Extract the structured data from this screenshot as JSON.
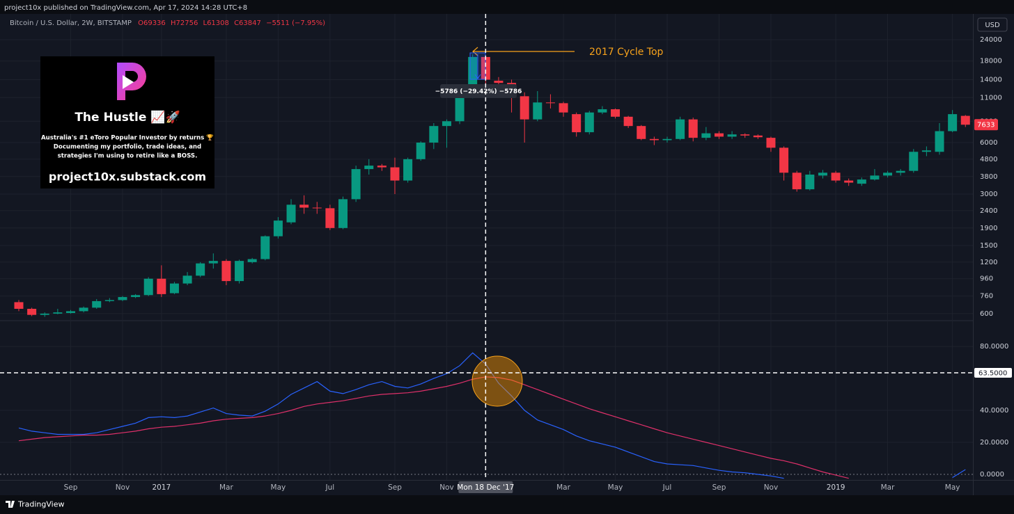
{
  "header": {
    "publisher": "project10x published on TradingView.com, Apr 17, 2024 14:28 UTC+8",
    "currency": "USD",
    "footer": "TradingView"
  },
  "legend": {
    "symbol": "Bitcoin / U.S. Dollar, 2W, BITSTAMP",
    "open": "O69336",
    "high": "H72756",
    "low": "L61308",
    "close": "C63847",
    "change": "−5511 (−7.95%)"
  },
  "promo": {
    "title": "The Hustle 📈🚀",
    "lines": [
      "Australia's #1 eToro Popular Investor by returns 🏆",
      "Documenting my portfolio, trade ideas, and",
      "strategies I'm using to retire like a BOSS."
    ],
    "url": "project10x.substack.com"
  },
  "chart_data": [
    {
      "type": "candlestick",
      "log_scale": true,
      "grid": true,
      "annotation": "2017 Cycle Top",
      "measure_label": "−5786 (−29.42%) −5786",
      "up_color": "#089981",
      "down_color": "#f23645",
      "ylim": [
        551,
        33300
      ],
      "yticks": [
        600,
        760,
        960,
        1200,
        1500,
        1900,
        2400,
        3000,
        3800,
        4800,
        6000,
        8000,
        11000,
        14000,
        18000,
        24000
      ],
      "open": [
        700,
        640,
        590,
        600,
        605,
        620,
        650,
        710,
        720,
        750,
        770,
        960,
        790,
        900,
        1000,
        1180,
        1220,
        930,
        1200,
        1250,
        1700,
        2050,
        2600,
        2500,
        2480,
        1900,
        2800,
        4200,
        4400,
        4300,
        3600,
        4800,
        6000,
        7500,
        8000,
        11000,
        19000,
        13800,
        13400,
        11200,
        8200,
        10300,
        10200,
        8800,
        6900,
        9000,
        9400,
        8500,
        7500,
        6300,
        6200,
        6300,
        8200,
        6400,
        6800,
        6500,
        6700,
        6600,
        6400,
        5600,
        4000,
        3200,
        3850,
        4000,
        3600,
        3450,
        3650,
        3850,
        4000,
        4100,
        5300,
        5300,
        7000,
        8600
      ],
      "high": [
        720,
        650,
        610,
        640,
        630,
        660,
        730,
        740,
        760,
        780,
        980,
        1150,
        920,
        1050,
        1200,
        1350,
        1250,
        1240,
        1270,
        1720,
        2200,
        2800,
        2950,
        2700,
        2600,
        2900,
        4400,
        4800,
        4500,
        4900,
        4900,
        6100,
        7800,
        8200,
        11300,
        19700,
        19500,
        14500,
        14000,
        11800,
        12000,
        11500,
        10400,
        9000,
        9200,
        9800,
        9500,
        8600,
        7600,
        6500,
        6500,
        8500,
        8400,
        7400,
        7000,
        7000,
        6800,
        6700,
        6500,
        5700,
        4100,
        4100,
        4150,
        4100,
        3700,
        3750,
        4200,
        4100,
        4200,
        5500,
        5700,
        7800,
        9300,
        8700
      ],
      "low": [
        620,
        580,
        575,
        595,
        600,
        610,
        640,
        700,
        710,
        740,
        760,
        750,
        780,
        880,
        980,
        1100,
        880,
        900,
        1180,
        1230,
        1650,
        2000,
        2300,
        2300,
        1850,
        1870,
        2700,
        3900,
        4100,
        3000,
        3500,
        4700,
        5500,
        5600,
        7700,
        10900,
        13200,
        13000,
        9000,
        6000,
        8000,
        9500,
        8500,
        6500,
        6700,
        8800,
        8300,
        7300,
        6200,
        5800,
        6000,
        6200,
        6100,
        6200,
        6300,
        6300,
        6400,
        6300,
        5300,
        3600,
        3100,
        3150,
        3700,
        3500,
        3350,
        3350,
        3600,
        3750,
        3850,
        4000,
        5000,
        5100,
        6900,
        7400
      ],
      "close": [
        640,
        590,
        600,
        610,
        620,
        650,
        710,
        720,
        750,
        770,
        960,
        780,
        900,
        1000,
        1180,
        1220,
        930,
        1220,
        1250,
        1700,
        2100,
        2600,
        2500,
        2480,
        1900,
        2800,
        4200,
        4400,
        4300,
        3600,
        4800,
        6000,
        7500,
        8000,
        11000,
        19000,
        14000,
        13400,
        11200,
        8200,
        10300,
        10200,
        9000,
        6900,
        9000,
        9400,
        8500,
        7500,
        6300,
        6200,
        6300,
        8200,
        6400,
        6800,
        6500,
        6700,
        6600,
        6450,
        5600,
        4000,
        3200,
        3900,
        4000,
        3600,
        3500,
        3650,
        3850,
        4000,
        4100,
        5300,
        5400,
        7000,
        8800,
        7633
      ]
    },
    {
      "type": "line",
      "grid": true,
      "categories": [
        null,
        null,
        null,
        null,
        "Sep",
        null,
        null,
        null,
        "Nov",
        null,
        null,
        "2017",
        null,
        null,
        null,
        null,
        "Mar",
        null,
        null,
        null,
        "May",
        null,
        null,
        null,
        "Jul",
        null,
        null,
        null,
        null,
        "Sep",
        null,
        null,
        null,
        "Nov",
        null,
        null,
        "Mon 18 Dec '17",
        null,
        null,
        null,
        null,
        null,
        "Mar",
        null,
        null,
        null,
        "May",
        null,
        null,
        null,
        "Jul",
        null,
        null,
        null,
        "Sep",
        null,
        null,
        null,
        "Nov",
        null,
        null,
        null,
        null,
        "2019",
        null,
        null,
        null,
        "Mar",
        null,
        null,
        null,
        null,
        "May",
        null
      ],
      "crosshair_x": "Mon 18 Dec '17",
      "crosshair_y": {
        "value": 63.5,
        "label": "63.5000"
      },
      "ylim": [
        -3.5,
        95.7
      ],
      "yticks": [
        {
          "value": 0,
          "label": "0.0000"
        },
        {
          "value": 20,
          "label": "20.0000"
        },
        {
          "value": 40,
          "label": "40.0000"
        },
        {
          "value": 80,
          "label": "80.0000"
        }
      ],
      "series": [
        {
          "color": "#2962ff",
          "values": [
            29,
            27,
            26,
            25,
            25,
            25,
            26,
            28,
            30,
            32,
            35.5,
            36,
            35.5,
            36.5,
            39,
            41.5,
            38,
            37,
            36.5,
            39.5,
            44,
            50,
            54,
            58,
            52,
            50.5,
            53,
            56,
            58,
            55,
            54,
            56.5,
            60,
            63,
            68,
            76,
            69,
            57,
            49,
            40,
            34,
            31,
            28,
            24,
            21,
            19,
            17,
            14,
            11,
            8,
            6.5,
            6,
            5.5,
            4,
            2.5,
            1.5,
            1,
            0,
            -1,
            -2.5,
            null,
            null,
            null,
            null,
            null,
            null,
            null,
            null,
            null,
            null,
            null,
            null,
            -2,
            3
          ]
        },
        {
          "color": "#e0306a",
          "values": [
            21,
            22,
            23,
            23.5,
            24,
            24.5,
            24.5,
            25,
            26,
            27,
            28.5,
            29.5,
            30,
            31,
            32,
            33.5,
            34.5,
            35,
            35.5,
            36.5,
            38,
            40,
            42.5,
            44,
            45,
            46,
            47.5,
            49,
            50,
            50.5,
            51,
            52,
            53.5,
            55,
            57,
            59.5,
            61,
            60.5,
            59,
            56,
            53,
            50,
            47,
            44,
            41,
            38.5,
            36,
            33.5,
            31,
            28.5,
            26,
            24,
            22,
            20,
            18,
            16,
            14,
            12,
            10,
            8.5,
            6.5,
            4,
            1.5,
            -0.5,
            -2.5,
            null,
            null,
            null,
            null,
            null,
            null,
            null,
            null,
            null
          ]
        }
      ]
    }
  ]
}
